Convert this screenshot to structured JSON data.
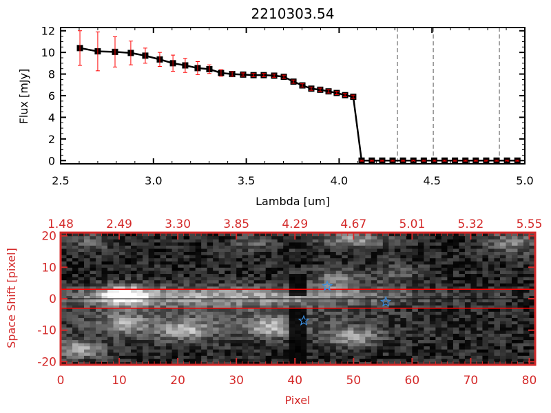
{
  "colors": {
    "axis_bottom": "#d42a2a",
    "error": "#ff0000",
    "star": "#3a8ee0",
    "line": "#000000"
  },
  "chart_data": [
    {
      "type": "line",
      "title": "2210303.54",
      "xlabel": "Lambda [um]",
      "ylabel": "Flux [mJy]",
      "xlim": [
        2.5,
        5.0
      ],
      "ylim": [
        -0.3,
        12.3
      ],
      "xticks": [
        "2.5",
        "3.0",
        "3.5",
        "4.0",
        "4.5",
        "5.0"
      ],
      "xtick_values": [
        2.5,
        3.0,
        3.5,
        4.0,
        4.5,
        5.0
      ],
      "yticks": [
        "0",
        "2",
        "4",
        "6",
        "8",
        "10",
        "12"
      ],
      "ytick_values": [
        0,
        2,
        4,
        6,
        8,
        10,
        12
      ],
      "x": [
        2.604,
        2.7,
        2.793,
        2.878,
        2.956,
        3.034,
        3.105,
        3.171,
        3.238,
        3.301,
        3.364,
        3.424,
        3.483,
        3.539,
        3.594,
        3.65,
        3.702,
        3.754,
        3.802,
        3.85,
        3.898,
        3.943,
        3.987,
        4.032,
        4.076,
        4.121,
        4.176,
        4.232,
        4.288,
        4.344,
        4.4,
        4.456,
        4.512,
        4.568,
        4.624,
        4.68,
        4.736,
        4.792,
        4.848,
        4.904,
        4.96
      ],
      "y": [
        10.4,
        10.1,
        10.05,
        9.95,
        9.7,
        9.35,
        9.0,
        8.8,
        8.55,
        8.45,
        8.1,
        8.0,
        7.95,
        7.9,
        7.9,
        7.85,
        7.75,
        7.3,
        6.95,
        6.65,
        6.55,
        6.4,
        6.25,
        6.05,
        5.9,
        0,
        0,
        0,
        0,
        0,
        0,
        0,
        0,
        0,
        0,
        0,
        0,
        0,
        0,
        0,
        0
      ],
      "yerr": [
        1.6,
        1.8,
        1.4,
        1.1,
        0.7,
        0.65,
        0.75,
        0.65,
        0.6,
        0.4,
        0.3,
        0.2,
        0.15,
        0.15,
        0.15,
        0.15,
        0.15,
        0.15,
        0.15,
        0.15,
        0.15,
        0.15,
        0.15,
        0.15,
        0.15,
        0.05,
        0.05,
        0.05,
        0.05,
        0.05,
        0.05,
        0.05,
        0.05,
        0.05,
        0.05,
        0.05,
        0.05,
        0.05,
        0.05,
        0.05,
        0.05
      ],
      "vlines": [
        4.314,
        4.507,
        4.863
      ],
      "grid": false
    },
    {
      "type": "heatmap",
      "xlabel": "Pixel",
      "ylabel": "Space Shift [pixel]",
      "xlim": [
        0,
        81
      ],
      "ylim": [
        -21,
        21
      ],
      "xticks": [
        "0",
        "10",
        "20",
        "30",
        "40",
        "50",
        "60",
        "70",
        "80"
      ],
      "xtick_values": [
        0,
        10,
        20,
        30,
        40,
        50,
        60,
        70,
        80
      ],
      "yticks": [
        "-20",
        "-10",
        "0",
        "10",
        "20"
      ],
      "ytick_values": [
        -20,
        -10,
        0,
        10,
        20
      ],
      "top_xticks": [
        "1.48",
        "2.49",
        "3.30",
        "3.85",
        "4.29",
        "4.67",
        "5.01",
        "5.32",
        "5.55"
      ],
      "hlines_red": [
        3,
        -3
      ],
      "hline_black": 0,
      "stars": [
        {
          "x": 45.5,
          "y": 4
        },
        {
          "x": 55.5,
          "y": -1
        },
        {
          "x": 41.5,
          "y": -7
        }
      ],
      "blobs": [
        {
          "x": 11,
          "y": 1,
          "sx": 3,
          "sy": 2.2,
          "v": 0.75
        },
        {
          "x": 30,
          "y": 1,
          "sx": 22,
          "sy": 2,
          "v": 0.45
        },
        {
          "x": 11,
          "y": -8,
          "sx": 2.5,
          "sy": 2,
          "v": 0.4
        },
        {
          "x": 21,
          "y": -10,
          "sx": 3,
          "sy": 2,
          "v": 0.45
        },
        {
          "x": 36,
          "y": -9,
          "sx": 3,
          "sy": 2,
          "v": 0.45
        },
        {
          "x": 50,
          "y": -12,
          "sx": 3,
          "sy": 2.2,
          "v": 0.45
        },
        {
          "x": 3,
          "y": -16,
          "sx": 3,
          "sy": 2,
          "v": 0.5
        },
        {
          "x": 50,
          "y": 19,
          "sx": 4,
          "sy": 1.8,
          "v": 0.45
        },
        {
          "x": 77,
          "y": 18,
          "sx": 3,
          "sy": 2.5,
          "v": 0.35
        },
        {
          "x": 5,
          "y": 18,
          "sx": 2.5,
          "sy": 2,
          "v": 0.25
        },
        {
          "x": 33,
          "y": 18,
          "sx": 2.5,
          "sy": 2,
          "v": 0.25
        },
        {
          "x": 47,
          "y": 6,
          "sx": 3,
          "sy": 2.5,
          "v": 0.35
        },
        {
          "x": 57,
          "y": 8,
          "sx": 3,
          "sy": 2.5,
          "v": 0.2
        },
        {
          "x": 25,
          "y": -6,
          "sx": 20,
          "sy": 5,
          "v": 0.2
        }
      ]
    }
  ]
}
